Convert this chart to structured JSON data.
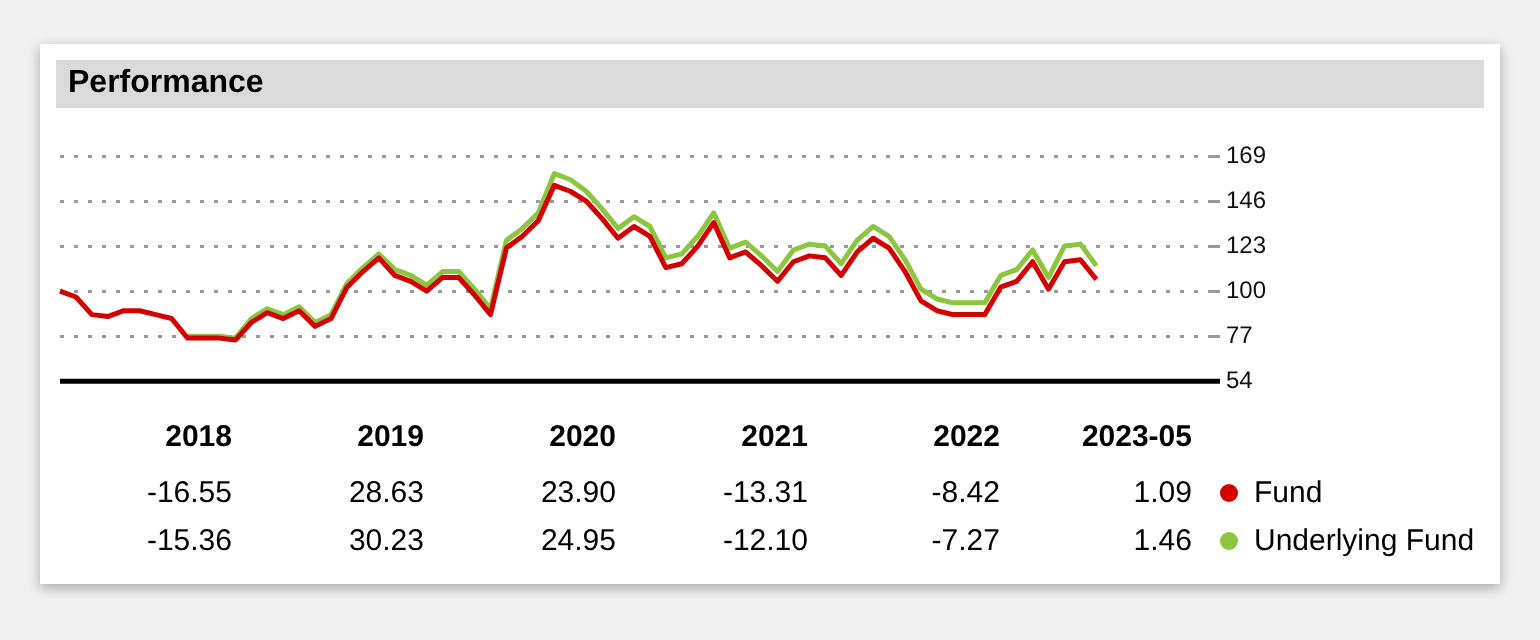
{
  "chart_data": {
    "type": "line",
    "title": "Performance",
    "categories": [
      null,
      null,
      null,
      null,
      null,
      null,
      null,
      null,
      null,
      null,
      null,
      null,
      null,
      null,
      null,
      null,
      null,
      null,
      null,
      null,
      null,
      null,
      null,
      null,
      null,
      null,
      null,
      null,
      null,
      null,
      null,
      null,
      null,
      null,
      null,
      null,
      null,
      null,
      null,
      null,
      null,
      null,
      null,
      null,
      null,
      null,
      null,
      null,
      null,
      null,
      null,
      null,
      null,
      null,
      null,
      null,
      null,
      null,
      null,
      null,
      null,
      null,
      null,
      null,
      null,
      null,
      null,
      null,
      null,
      null,
      null,
      null,
      null
    ],
    "series": [
      {
        "name": "Fund",
        "color": "#d40000",
        "values": [
          100,
          97,
          88,
          87,
          90,
          90,
          88,
          86,
          76,
          76,
          76,
          75,
          84,
          89,
          86,
          90,
          82,
          86,
          102,
          110,
          117,
          108,
          105,
          100,
          107,
          107,
          98,
          88,
          122,
          128,
          136,
          154,
          151,
          146,
          137,
          127,
          133,
          128,
          112,
          114,
          123,
          135,
          117,
          120,
          113,
          105,
          115,
          118,
          117,
          108,
          120,
          127,
          122,
          110,
          95,
          90,
          88,
          88,
          88,
          102,
          105,
          115,
          101,
          115,
          116,
          106,
          null,
          null,
          null,
          null,
          null,
          null,
          null
        ]
      },
      {
        "name": "Underlying Fund",
        "color": "#8cc63f",
        "values": [
          null,
          null,
          null,
          null,
          null,
          null,
          null,
          null,
          77,
          77,
          77,
          76,
          86,
          91,
          88,
          92,
          84,
          88,
          104,
          112,
          119,
          111,
          108,
          103,
          110,
          110,
          101,
          91,
          126,
          132,
          140,
          160,
          157,
          151,
          142,
          132,
          138,
          133,
          117,
          119,
          128,
          140,
          122,
          125,
          118,
          110,
          121,
          124,
          123,
          114,
          126,
          133,
          128,
          116,
          101,
          96,
          94,
          94,
          94,
          108,
          111,
          121,
          107,
          123,
          124,
          113,
          null,
          null,
          null,
          null,
          null,
          null,
          null
        ]
      }
    ],
    "ylim": [
      54,
      169
    ],
    "yticks": [
      54,
      77,
      100,
      123,
      146,
      169
    ],
    "grid": "y",
    "legend": "bottom right",
    "marker": "none",
    "line_style": "solid",
    "annotations": [
      "2018",
      "2019",
      "2020",
      "2021",
      "2022",
      "2023-05",
      "-16.55",
      "28.63",
      "23.90",
      "-13.31",
      "-8.42",
      "1.09",
      "-15.36",
      "30.23",
      "24.95",
      "-12.10",
      "-7.27",
      "1.46"
    ]
  }
}
